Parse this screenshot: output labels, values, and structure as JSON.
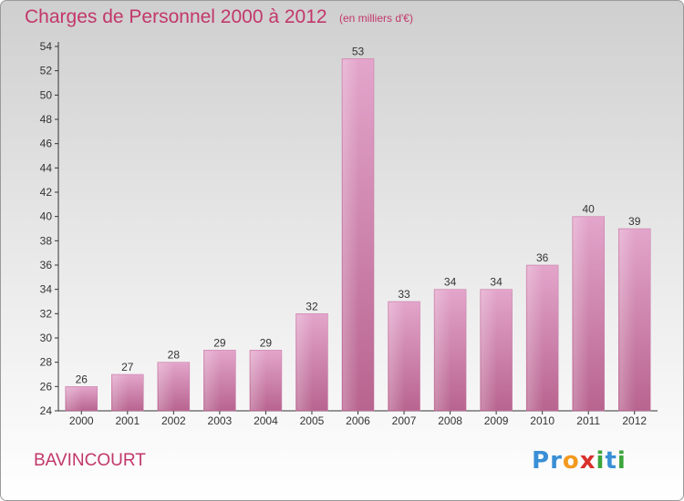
{
  "title": "Charges de Personnel 2000 à 2012",
  "unit_label": "(en milliers d'€)",
  "commune": "BAVINCOURT",
  "logo": {
    "letters": [
      {
        "char": "P",
        "color": "#3a8fd6"
      },
      {
        "char": "r",
        "color": "#3a8fd6"
      },
      {
        "char": "o",
        "color": "#f29a1f"
      },
      {
        "char": "x",
        "color": "#d9302c"
      },
      {
        "char": "i",
        "color": "#3ba53b"
      },
      {
        "char": "t",
        "color": "#3a8fd6"
      },
      {
        "char": "i",
        "color": "#3ba53b"
      }
    ]
  },
  "chart_data": {
    "type": "bar",
    "title": "Charges de Personnel 2000 à 2012",
    "ylabel": "(en milliers d'€)",
    "xlabel": "",
    "categories": [
      "2000",
      "2001",
      "2002",
      "2003",
      "2004",
      "2005",
      "2006",
      "2007",
      "2008",
      "2009",
      "2010",
      "2011",
      "2012"
    ],
    "values": [
      26,
      27,
      28,
      29,
      29,
      32,
      53,
      33,
      34,
      34,
      36,
      40,
      39
    ],
    "ylim": [
      24,
      54
    ],
    "yticks": [
      24,
      26,
      28,
      30,
      32,
      34,
      36,
      38,
      40,
      42,
      44,
      46,
      48,
      50,
      52,
      54
    ],
    "grid": false,
    "bar_color": "#d98fb8",
    "bar_color_dark": "#b5628f"
  }
}
